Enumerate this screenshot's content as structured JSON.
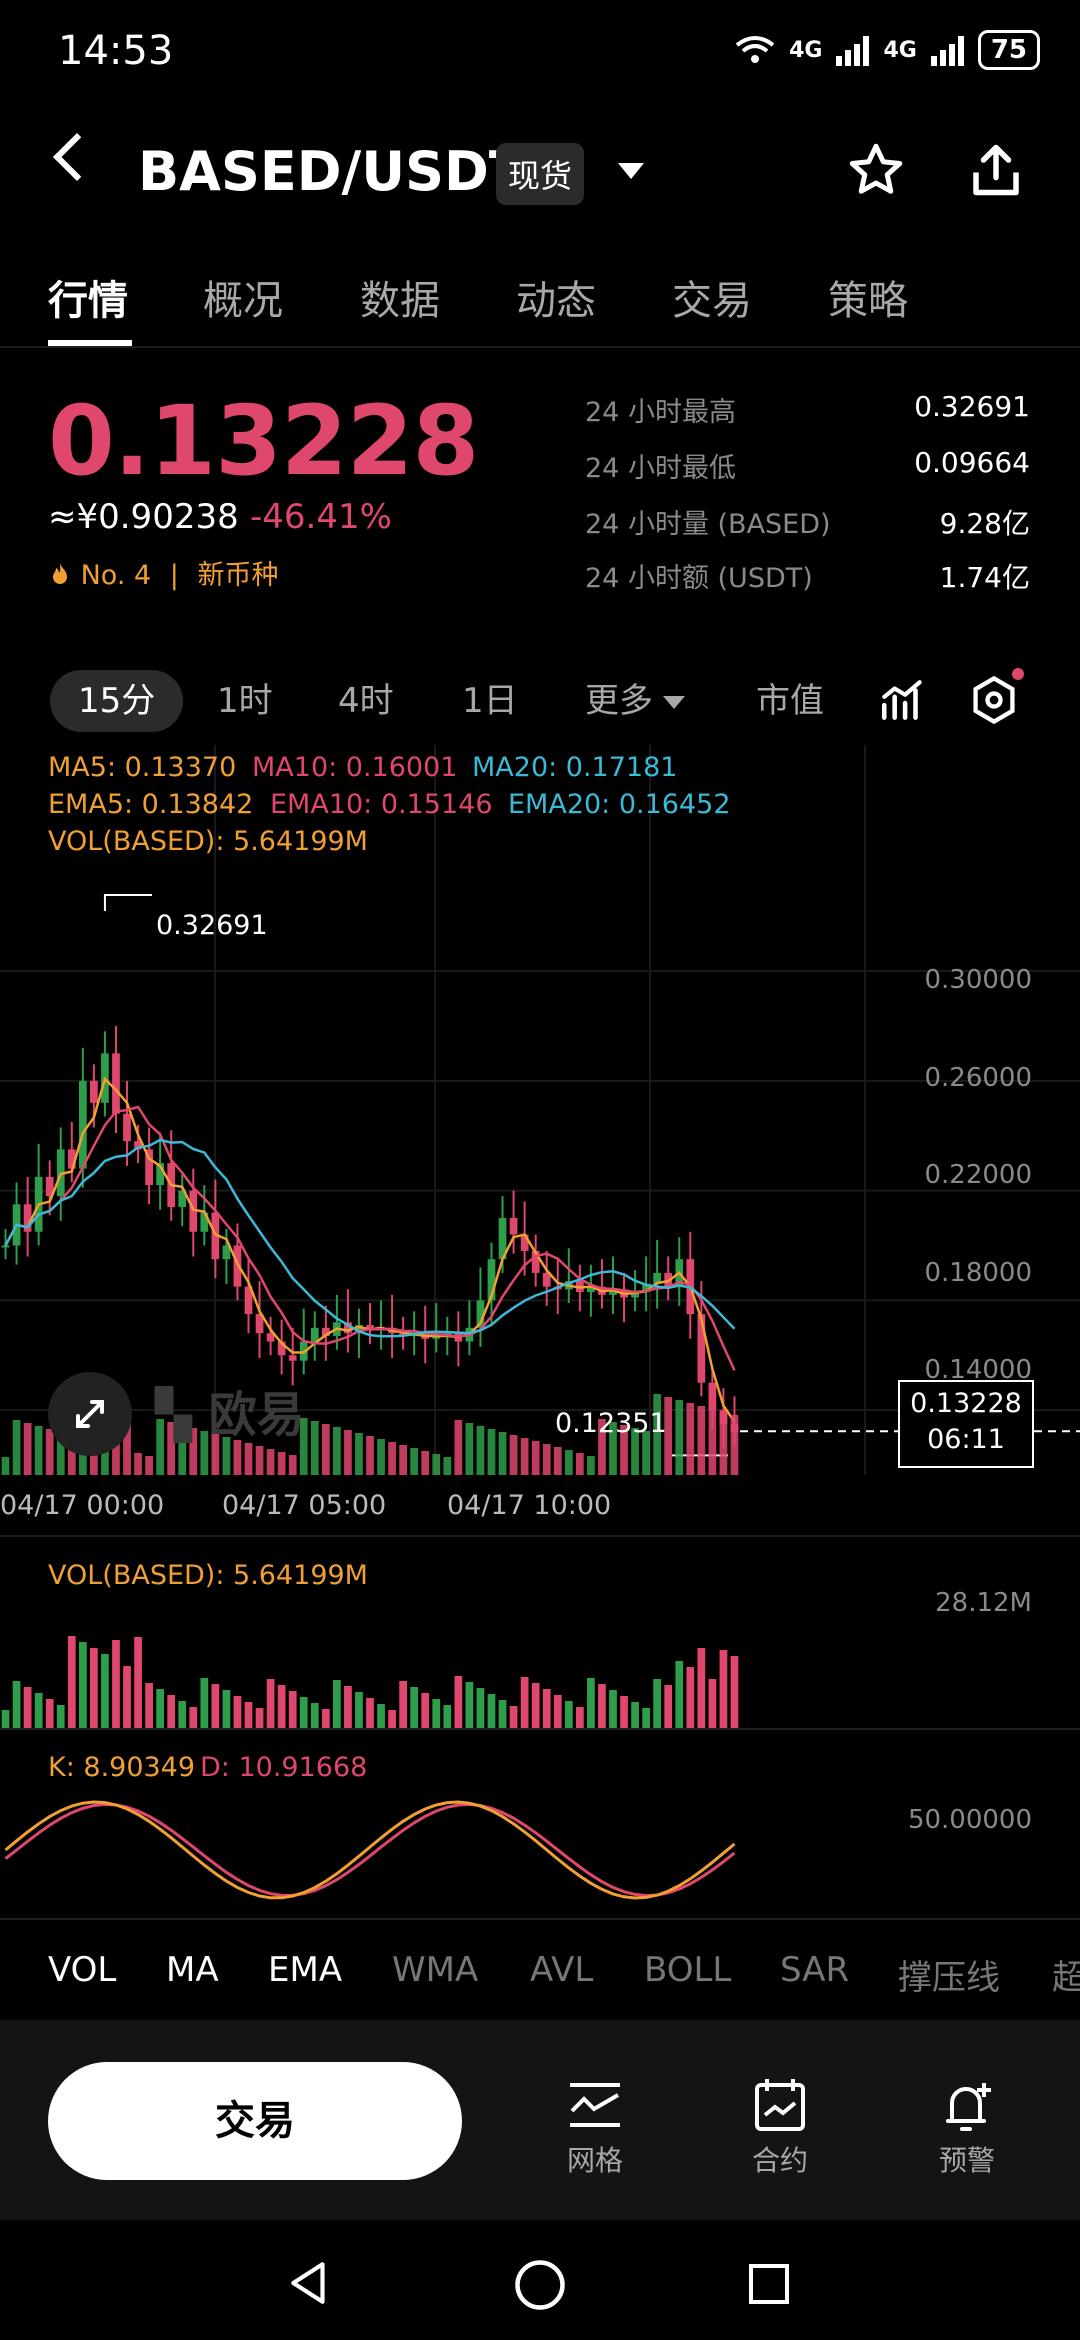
{
  "status": {
    "time": "14:53",
    "net1": "4G",
    "net2": "4G",
    "battery": "75"
  },
  "header": {
    "pair": "BASED/USDT",
    "market_badge": "现货"
  },
  "tabs": [
    "行情",
    "概况",
    "数据",
    "动态",
    "交易",
    "策略"
  ],
  "price": {
    "last": "0.13228",
    "approx_cny": "≈¥0.90238",
    "change_pct": "-46.41%",
    "rank": "No. 4",
    "rank_tag": "新币种",
    "separator": "|"
  },
  "stats": [
    {
      "label": "24 小时最高",
      "value": "0.32691"
    },
    {
      "label": "24 小时最低",
      "value": "0.09664"
    },
    {
      "label": "24 小时量 (BASED)",
      "value": "9.28亿"
    },
    {
      "label": "24 小时额 (USDT)",
      "value": "1.74亿"
    }
  ],
  "intervals": {
    "items": [
      "15分",
      "1时",
      "4时",
      "1日",
      "更多",
      "市值"
    ],
    "selected": "15分"
  },
  "indicators": {
    "ma5": "MA5: 0.13370",
    "ma10": "MA10: 0.16001",
    "ma20": "MA20: 0.17181",
    "ema5": "EMA5: 0.13842",
    "ema10": "EMA10: 0.15146",
    "ema20": "EMA20: 0.16452",
    "vol": "VOL(BASED): 5.64199M"
  },
  "chart_data": {
    "type": "candlestick",
    "y_ticks": [
      "0.30000",
      "0.26000",
      "0.22000",
      "0.18000",
      "0.14000"
    ],
    "ylim": [
      0.12,
      0.335
    ],
    "x_ticks": [
      "04/17 00:00",
      "04/17 05:00",
      "04/17 10:00"
    ],
    "high_label": "0.32691",
    "low_label": "0.12351",
    "last_price_label": "0.13228",
    "countdown": "06:11",
    "closes": [
      0.2,
      0.215,
      0.205,
      0.225,
      0.218,
      0.235,
      0.228,
      0.26,
      0.252,
      0.27,
      0.248,
      0.238,
      0.235,
      0.222,
      0.23,
      0.214,
      0.22,
      0.205,
      0.212,
      0.195,
      0.2,
      0.185,
      0.175,
      0.168,
      0.165,
      0.16,
      0.158,
      0.165,
      0.17,
      0.167,
      0.172,
      0.168,
      0.171,
      0.169,
      0.17,
      0.168,
      0.167,
      0.168,
      0.166,
      0.167,
      0.168,
      0.165,
      0.17,
      0.18,
      0.195,
      0.21,
      0.204,
      0.198,
      0.19,
      0.185,
      0.184,
      0.187,
      0.183,
      0.185,
      0.182,
      0.184,
      0.181,
      0.183,
      0.186,
      0.19,
      0.185,
      0.195,
      0.175,
      0.15,
      0.14,
      0.135,
      0.132
    ],
    "volume_max_label": "28.12M",
    "volume_indicator": "VOL(BASED): 5.64199M",
    "kdj_label_k": "K: 8.90349",
    "kdj_label_d": "D: 10.91668",
    "kdj_axis": "50.00000",
    "watermark": "欧易"
  },
  "indicator_tabs": [
    "VOL",
    "MA",
    "EMA",
    "WMA",
    "AVL",
    "BOLL",
    "SAR",
    "撑压线",
    "超"
  ],
  "active_indicator_tabs": [
    "VOL",
    "MA",
    "EMA"
  ],
  "bottom": {
    "trade": "交易",
    "grid": "网格",
    "contract": "合约",
    "alert": "预警"
  },
  "colors": {
    "up": "#2f9e4a",
    "down": "#e0476c",
    "accent": "#f0a033"
  }
}
